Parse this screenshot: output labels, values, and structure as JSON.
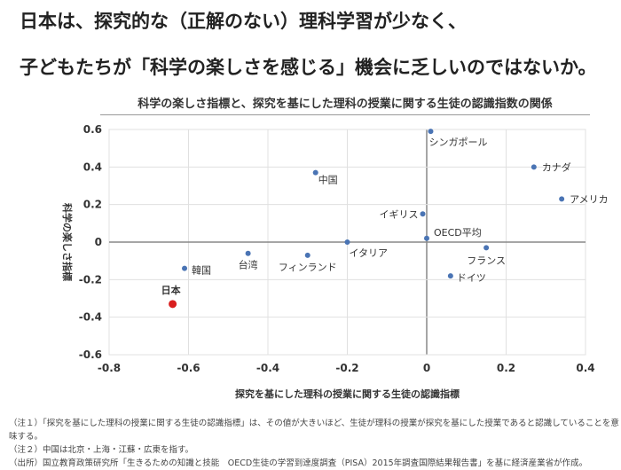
{
  "headline": [
    "日本は、探究的な（正解のない）理科学習が少なく、",
    "子どもたちが「科学の楽しさを感じる」機会に乏しいのではないか。"
  ],
  "chart_data": {
    "type": "scatter",
    "title": "科学の楽しさ指標と、探究を基にした理科の授業に関する生徒の認識指数の関係",
    "xlabel": "探究を基にした理科の授業に関する生徒の認識指標",
    "ylabel": "科学の楽しさ指標",
    "xlim": [
      -0.8,
      0.4
    ],
    "ylim": [
      -0.6,
      0.6
    ],
    "xticks": [
      "-0.8",
      "-0.6",
      "-0.4",
      "-0.2",
      "0",
      "0.2",
      "0.4"
    ],
    "yticks": [
      "0.6",
      "0.4",
      "0.2",
      "0",
      "-0.2",
      "-0.4",
      "-0.6"
    ],
    "grid": true,
    "point_color": "#4a74b4",
    "highlight_color": "#d91e1e",
    "points": [
      {
        "label": "シンガポール",
        "x": 0.01,
        "y": 0.59
      },
      {
        "label": "中国",
        "x": -0.28,
        "y": 0.37
      },
      {
        "label": "カナダ",
        "x": 0.27,
        "y": 0.4
      },
      {
        "label": "アメリカ",
        "x": 0.34,
        "y": 0.23
      },
      {
        "label": "イギリス",
        "x": -0.01,
        "y": 0.15
      },
      {
        "label": "OECD平均",
        "x": 0.0,
        "y": 0.02
      },
      {
        "label": "イタリア",
        "x": -0.2,
        "y": 0.0
      },
      {
        "label": "フランス",
        "x": 0.15,
        "y": -0.03
      },
      {
        "label": "ドイツ",
        "x": 0.06,
        "y": -0.18
      },
      {
        "label": "フィンランド",
        "x": -0.3,
        "y": -0.07
      },
      {
        "label": "台湾",
        "x": -0.45,
        "y": -0.06
      },
      {
        "label": "韓国",
        "x": -0.61,
        "y": -0.14
      },
      {
        "label": "日本",
        "x": -0.64,
        "y": -0.33,
        "highlight": true
      }
    ]
  },
  "notes": [
    "（注１）「探究を基にした理科の授業に関する生徒の認識指標」は、その値が大きいほど、生徒が理科の授業が探究を基にした授業であると認識していることを意味する。",
    "（注２）中国は北京・上海・江蘇・広東を指す。",
    "（出所）国立教育政策研究所「生きるための知識と技能　OECD生徒の学習到達度調査（PISA）2015年調査国際結果報告書」を基に経済産業省が作成。"
  ]
}
